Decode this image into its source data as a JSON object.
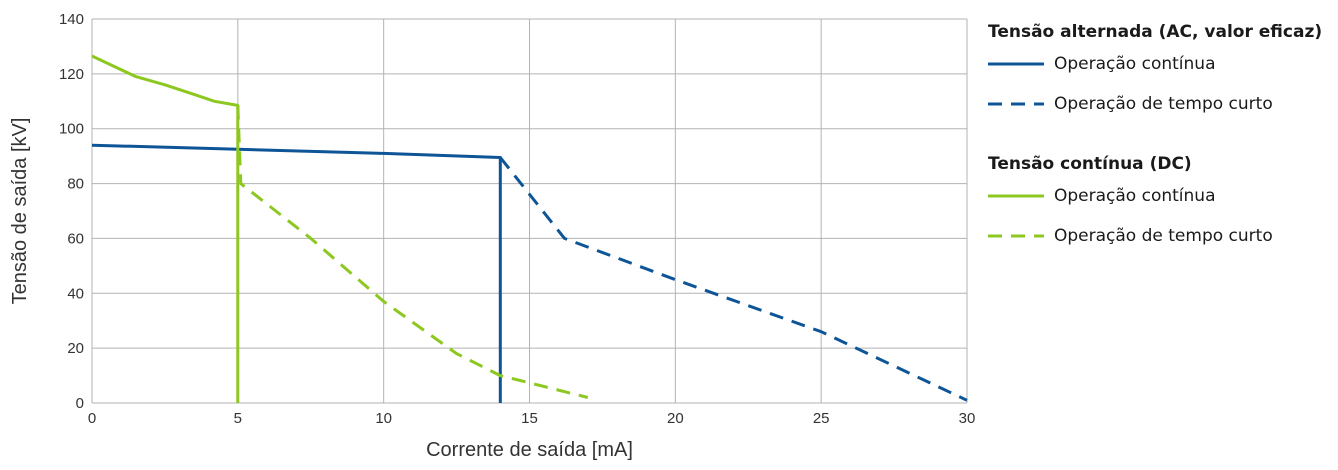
{
  "chart_data": {
    "type": "line",
    "xlabel": "Corrente de saída [mA]",
    "ylabel": "Tensão de saída [kV]",
    "xlim": [
      0,
      30
    ],
    "ylim": [
      0,
      140
    ],
    "xticks": [
      0,
      5,
      10,
      15,
      20,
      25,
      30
    ],
    "yticks": [
      0,
      20,
      40,
      60,
      80,
      100,
      120,
      140
    ],
    "grid": true,
    "legend_position": "right",
    "legend_groups": [
      {
        "title": "Tensão alternada (AC, valor eficaz)",
        "items": [
          "ac_cont",
          "ac_short"
        ]
      },
      {
        "title": "Tensão contínua (DC)",
        "items": [
          "dc_cont",
          "dc_short"
        ]
      }
    ],
    "series": [
      {
        "id": "ac_cont",
        "name": "Operação contínua",
        "color": "#0d5597",
        "dash": "solid",
        "points": [
          [
            0,
            94
          ],
          [
            5,
            92.5
          ],
          [
            10,
            91
          ],
          [
            14,
            89.5
          ],
          [
            14,
            0
          ]
        ]
      },
      {
        "id": "ac_short",
        "name": "Operação de tempo curto",
        "color": "#0d5597",
        "dash": "dashed",
        "points": [
          [
            14,
            89.5
          ],
          [
            16.2,
            60
          ],
          [
            20,
            45
          ],
          [
            25,
            26
          ],
          [
            30,
            1
          ]
        ]
      },
      {
        "id": "dc_cont",
        "name": "Operação contínua",
        "color": "#8cc81f",
        "dash": "solid",
        "points": [
          [
            0,
            126.5
          ],
          [
            0.7,
            123
          ],
          [
            1.5,
            119
          ],
          [
            2.5,
            116
          ],
          [
            3.5,
            112.5
          ],
          [
            4.2,
            110
          ],
          [
            5,
            108.5
          ],
          [
            5,
            0
          ]
        ]
      },
      {
        "id": "dc_short",
        "name": "Operação de tempo curto",
        "color": "#8cc81f",
        "dash": "dashed",
        "points": [
          [
            5,
            108.5
          ],
          [
            5.1,
            80
          ],
          [
            7.5,
            60
          ],
          [
            10,
            37
          ],
          [
            12.5,
            18
          ],
          [
            14,
            10
          ],
          [
            15.5,
            6
          ],
          [
            17,
            2
          ]
        ]
      }
    ]
  }
}
